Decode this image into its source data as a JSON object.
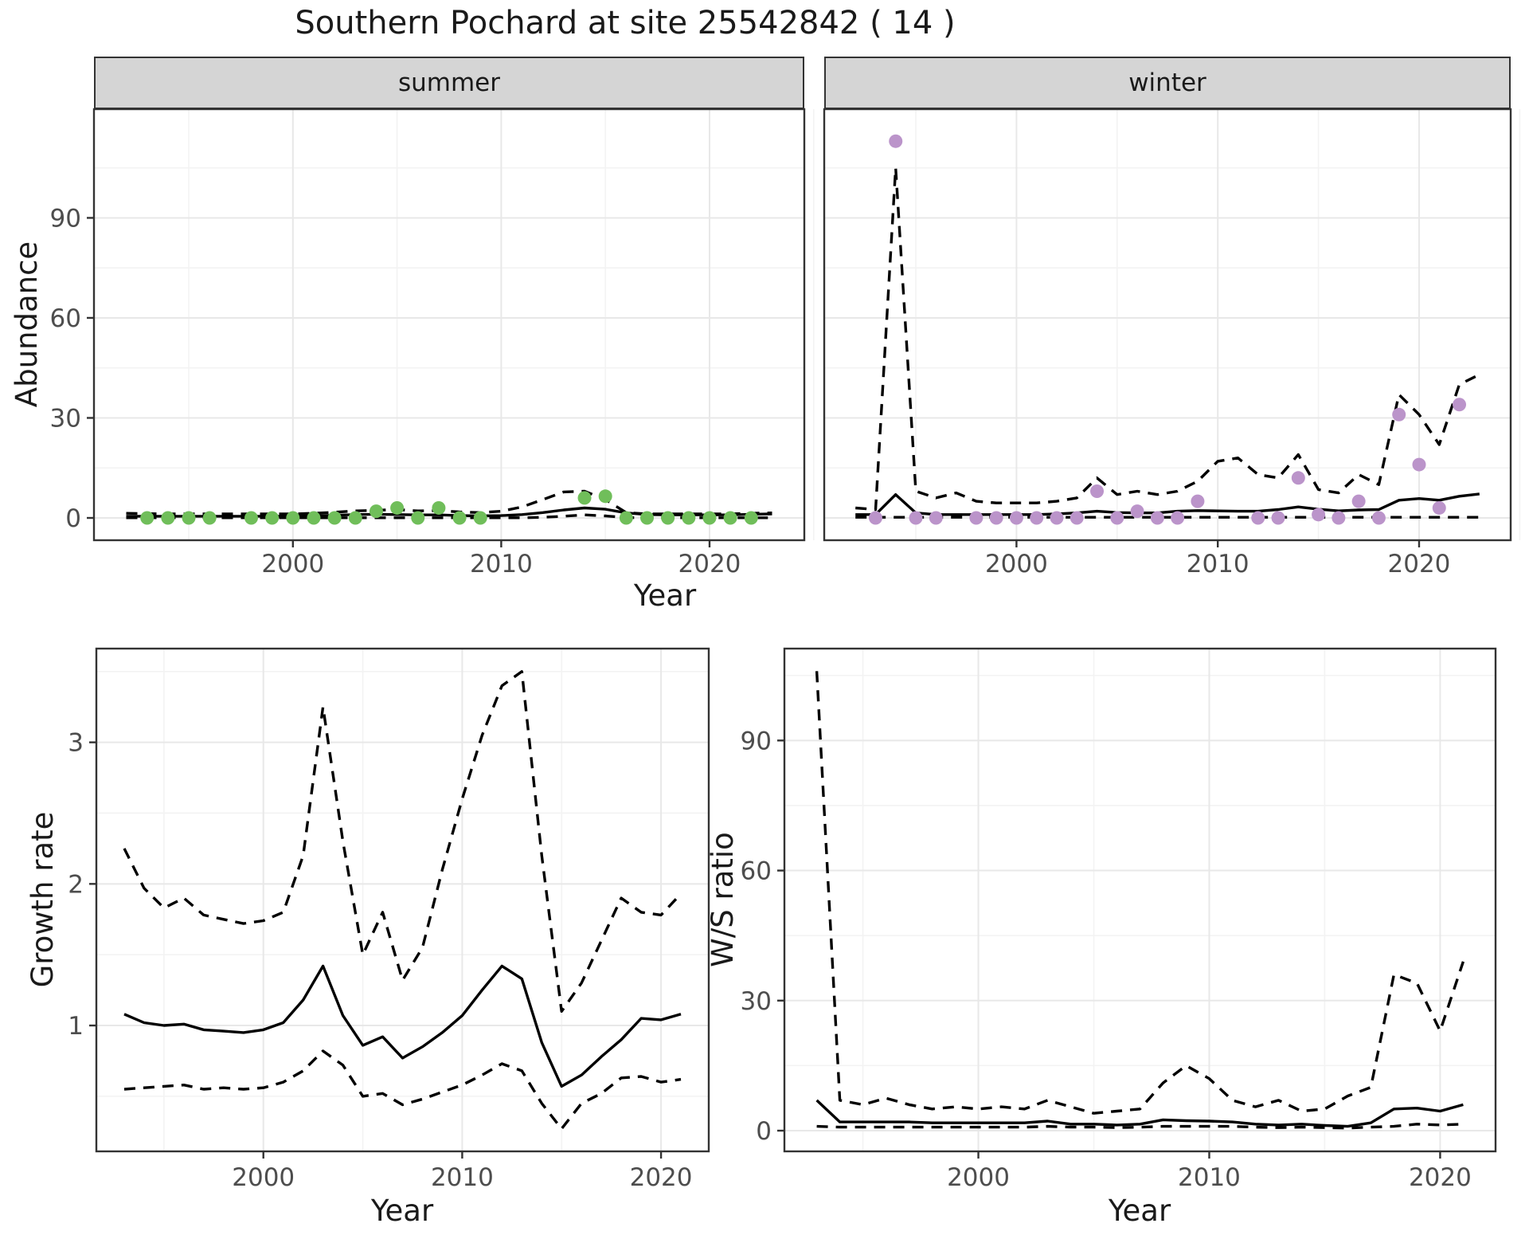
{
  "title": "Southern Pochard at site 25542842 ( 14 )",
  "colors": {
    "summer_point": "#70BE5A",
    "winter_point": "#BB94CA",
    "line": "#000000",
    "panel_border": "#333333",
    "grid_major": "#E8E8E8",
    "grid_minor": "#F3F3F3",
    "strip_bg": "#D5D5D5",
    "tick_label": "#4D4D4D",
    "text": "#1A1A1A"
  },
  "chart_data": [
    {
      "type": "scatter+line",
      "facet_label": "summer",
      "xlabel": "Year",
      "ylabel": "Abundance",
      "x_ticks": [
        2000,
        2010,
        2020
      ],
      "x_minor": [
        1995,
        2005,
        2015,
        2025
      ],
      "y_ticks": [
        0,
        30,
        60,
        90
      ],
      "y_minor": [
        15,
        45,
        75,
        105
      ],
      "xlim": [
        1990.45,
        2024.55
      ],
      "ylim": [
        -6.69,
        122.61
      ],
      "show_y_labels": true,
      "grid": true,
      "legend": "none",
      "line_years": [
        1992,
        1993,
        1994,
        1995,
        1996,
        1997,
        1998,
        1999,
        2000,
        2001,
        2002,
        2003,
        2004,
        2005,
        2006,
        2007,
        2008,
        2009,
        2010,
        2011,
        2012,
        2013,
        2014,
        2015,
        2016,
        2017,
        2018,
        2019,
        2020,
        2021,
        2022,
        2023
      ],
      "series": [
        {
          "name": "lower_ci",
          "style": "dashed",
          "values": [
            0.05,
            0.05,
            0.05,
            0.05,
            0.05,
            0.05,
            0.05,
            0.05,
            0.05,
            0.05,
            0.05,
            0.05,
            0.05,
            0.05,
            0.05,
            0.05,
            0.05,
            0.05,
            0.05,
            0.05,
            0.2,
            0.5,
            0.9,
            0.6,
            0.1,
            0.05,
            0.05,
            0.05,
            0.05,
            0.05,
            0.05,
            0.05
          ]
        },
        {
          "name": "upper_ci",
          "style": "dashed",
          "values": [
            1.4,
            1.3,
            1.2,
            1.2,
            1.2,
            1.2,
            1.2,
            1.2,
            1.2,
            1.4,
            1.7,
            2.1,
            2.3,
            2.5,
            2.1,
            2.2,
            1.8,
            1.6,
            2.0,
            3.3,
            5.5,
            7.8,
            8.0,
            5.5,
            1.6,
            1.2,
            1.2,
            1.2,
            1.2,
            1.2,
            1.4,
            1.5
          ]
        },
        {
          "name": "model_fit",
          "style": "solid",
          "values": [
            0.5,
            0.5,
            0.5,
            0.5,
            0.5,
            0.5,
            0.5,
            0.5,
            0.5,
            0.6,
            0.8,
            1.0,
            1.1,
            1.0,
            0.9,
            0.9,
            0.7,
            0.6,
            0.7,
            1.0,
            1.6,
            2.4,
            3.0,
            2.6,
            1.5,
            1.0,
            0.9,
            0.9,
            0.9,
            0.9,
            1.1,
            1.2
          ]
        }
      ],
      "points": [
        [
          1993,
          0
        ],
        [
          1994,
          0
        ],
        [
          1995,
          0
        ],
        [
          1996,
          0
        ],
        [
          1998,
          0
        ],
        [
          1999,
          0
        ],
        [
          2000,
          0
        ],
        [
          2001,
          0
        ],
        [
          2002,
          0
        ],
        [
          2003,
          0
        ],
        [
          2004,
          2
        ],
        [
          2005,
          3
        ],
        [
          2006,
          0
        ],
        [
          2007,
          3
        ],
        [
          2008,
          0
        ],
        [
          2009,
          0
        ],
        [
          2014,
          6
        ],
        [
          2015,
          6.5
        ],
        [
          2016,
          0
        ],
        [
          2017,
          0
        ],
        [
          2018,
          0
        ],
        [
          2019,
          0
        ],
        [
          2020,
          0
        ],
        [
          2021,
          0
        ],
        [
          2022,
          0
        ]
      ],
      "point_color_key": "summer_point"
    },
    {
      "type": "scatter+line",
      "facet_label": "winter",
      "xlabel": "Year",
      "ylabel": "Abundance",
      "x_ticks": [
        2000,
        2010,
        2020
      ],
      "x_minor": [
        1995,
        2005,
        2015,
        2025
      ],
      "y_ticks": [
        0,
        30,
        60,
        90
      ],
      "y_minor": [
        15,
        45,
        75,
        105
      ],
      "xlim": [
        1990.45,
        2024.55
      ],
      "ylim": [
        -6.69,
        122.61
      ],
      "show_y_labels": false,
      "grid": true,
      "legend": "none",
      "line_years": [
        1992,
        1993,
        1994,
        1995,
        1996,
        1997,
        1998,
        1999,
        2000,
        2001,
        2002,
        2003,
        2004,
        2005,
        2006,
        2007,
        2008,
        2009,
        2010,
        2011,
        2012,
        2013,
        2014,
        2015,
        2016,
        2017,
        2018,
        2019,
        2020,
        2021,
        2022,
        2023
      ],
      "series": [
        {
          "name": "lower_ci",
          "style": "dashed",
          "values": [
            0.2,
            0.2,
            0.2,
            0.2,
            0.2,
            0.2,
            0.2,
            0.2,
            0.2,
            0.2,
            0.2,
            0.2,
            0.2,
            0.2,
            0.2,
            0.2,
            0.2,
            0.2,
            0.2,
            0.2,
            0.2,
            0.2,
            0.2,
            0.2,
            0.2,
            0.2,
            0.2,
            0.2,
            0.2,
            0.2,
            0.2,
            0.2
          ]
        },
        {
          "name": "upper_ci",
          "style": "dashed",
          "values": [
            3,
            2.5,
            105,
            8,
            6,
            7.5,
            5,
            4.5,
            4.5,
            4.5,
            5,
            6,
            12,
            7,
            8,
            7,
            8,
            11,
            17,
            18,
            13,
            12,
            19,
            8.5,
            7.5,
            13,
            10,
            37,
            31,
            22,
            40,
            43
          ]
        },
        {
          "name": "model_fit",
          "style": "solid",
          "values": [
            1.0,
            1.0,
            7.0,
            1.5,
            1.0,
            1.0,
            1.0,
            1.0,
            1.0,
            1.0,
            1.2,
            1.5,
            2.0,
            1.6,
            1.5,
            1.5,
            2.0,
            2.2,
            2.1,
            2.0,
            2.0,
            2.5,
            3.3,
            2.6,
            2.1,
            2.4,
            2.5,
            5.3,
            5.8,
            5.3,
            6.5,
            7.2
          ]
        }
      ],
      "points": [
        [
          1993,
          0
        ],
        [
          1994,
          113
        ],
        [
          1995,
          0
        ],
        [
          1996,
          0
        ],
        [
          1998,
          0
        ],
        [
          1999,
          0
        ],
        [
          2000,
          0
        ],
        [
          2001,
          0
        ],
        [
          2002,
          0
        ],
        [
          2003,
          0
        ],
        [
          2004,
          8
        ],
        [
          2005,
          0
        ],
        [
          2006,
          2
        ],
        [
          2007,
          0
        ],
        [
          2008,
          0
        ],
        [
          2009,
          5
        ],
        [
          2012,
          0
        ],
        [
          2013,
          0
        ],
        [
          2014,
          12
        ],
        [
          2015,
          1
        ],
        [
          2016,
          0
        ],
        [
          2017,
          5
        ],
        [
          2018,
          0
        ],
        [
          2019,
          31
        ],
        [
          2020,
          16
        ],
        [
          2021,
          3
        ],
        [
          2022,
          34
        ]
      ],
      "point_color_key": "winter_point"
    },
    {
      "type": "line",
      "facet_label": "",
      "xlabel": "Year",
      "ylabel": "Growth rate",
      "x_ticks": [
        2000,
        2010,
        2020
      ],
      "x_minor": [
        1995,
        2005,
        2015
      ],
      "y_ticks": [
        1,
        2,
        3
      ],
      "y_minor": [
        0.5,
        1.5,
        2.5,
        3.5
      ],
      "xlim": [
        1991.6,
        2022.4
      ],
      "ylim": [
        0.111,
        3.662
      ],
      "show_y_labels": true,
      "grid": true,
      "legend": "none",
      "line_years": [
        1993,
        1994,
        1995,
        1996,
        1997,
        1998,
        1999,
        2000,
        2001,
        2002,
        2003,
        2004,
        2005,
        2006,
        2007,
        2008,
        2009,
        2010,
        2011,
        2012,
        2013,
        2014,
        2015,
        2016,
        2017,
        2018,
        2019,
        2020,
        2021
      ],
      "series": [
        {
          "name": "lower_ci",
          "style": "dashed",
          "values": [
            0.55,
            0.56,
            0.57,
            0.58,
            0.55,
            0.56,
            0.55,
            0.56,
            0.6,
            0.68,
            0.82,
            0.72,
            0.5,
            0.52,
            0.44,
            0.48,
            0.53,
            0.58,
            0.65,
            0.73,
            0.68,
            0.45,
            0.27,
            0.45,
            0.52,
            0.63,
            0.64,
            0.6,
            0.62
          ]
        },
        {
          "name": "upper_ci",
          "style": "dashed",
          "values": [
            2.25,
            1.97,
            1.83,
            1.9,
            1.78,
            1.75,
            1.72,
            1.74,
            1.8,
            2.2,
            3.25,
            2.3,
            1.5,
            1.8,
            1.32,
            1.55,
            2.1,
            2.6,
            3.05,
            3.4,
            3.5,
            2.2,
            1.1,
            1.3,
            1.6,
            1.9,
            1.8,
            1.78,
            1.93
          ]
        },
        {
          "name": "model_fit",
          "style": "solid",
          "values": [
            1.08,
            1.02,
            1.0,
            1.01,
            0.97,
            0.96,
            0.95,
            0.97,
            1.02,
            1.18,
            1.42,
            1.07,
            0.86,
            0.92,
            0.77,
            0.85,
            0.95,
            1.07,
            1.25,
            1.42,
            1.33,
            0.88,
            0.57,
            0.65,
            0.78,
            0.9,
            1.05,
            1.04,
            1.08
          ]
        }
      ],
      "points": null,
      "point_color_key": null
    },
    {
      "type": "line",
      "facet_label": "",
      "xlabel": "Year",
      "ylabel": "W/S ratio",
      "x_ticks": [
        2000,
        2010,
        2020
      ],
      "x_minor": [
        1995,
        2005,
        2015
      ],
      "y_ticks": [
        0,
        30,
        60,
        90
      ],
      "y_minor": [
        15,
        45,
        75,
        105
      ],
      "xlim": [
        1991.6,
        2022.4
      ],
      "ylim": [
        -4.78,
        111.2
      ],
      "show_y_labels": true,
      "grid": true,
      "legend": "none",
      "line_years": [
        1993,
        1994,
        1995,
        1996,
        1997,
        1998,
        1999,
        2000,
        2001,
        2002,
        2003,
        2004,
        2005,
        2006,
        2007,
        2008,
        2009,
        2010,
        2011,
        2012,
        2013,
        2014,
        2015,
        2016,
        2017,
        2018,
        2019,
        2020,
        2021
      ],
      "series": [
        {
          "name": "lower_ci",
          "style": "dashed",
          "values": [
            1,
            0.8,
            0.8,
            0.8,
            0.8,
            0.8,
            0.8,
            0.8,
            0.8,
            0.8,
            1,
            0.8,
            0.8,
            0.7,
            0.8,
            1,
            1,
            1,
            1,
            0.8,
            0.7,
            0.8,
            0.7,
            0.6,
            0.8,
            1,
            1.5,
            1.3,
            1.5
          ]
        },
        {
          "name": "upper_ci",
          "style": "dashed",
          "values": [
            106,
            7,
            6,
            7.5,
            6,
            5,
            5.5,
            5,
            5.5,
            5,
            7,
            5.5,
            4,
            4.5,
            5,
            11,
            15,
            12,
            7,
            5.5,
            7,
            4.5,
            5,
            8,
            10,
            36,
            34,
            23,
            39
          ]
        },
        {
          "name": "model_fit",
          "style": "solid",
          "values": [
            7,
            2,
            2,
            2,
            2,
            1.8,
            1.8,
            1.8,
            1.8,
            1.8,
            2.2,
            1.5,
            1.5,
            1.3,
            1.5,
            2.5,
            2.3,
            2.2,
            2.0,
            1.5,
            1.3,
            1.5,
            1.2,
            1.0,
            1.8,
            5.0,
            5.2,
            4.5,
            6.0
          ]
        }
      ],
      "points": null,
      "point_color_key": null
    }
  ]
}
